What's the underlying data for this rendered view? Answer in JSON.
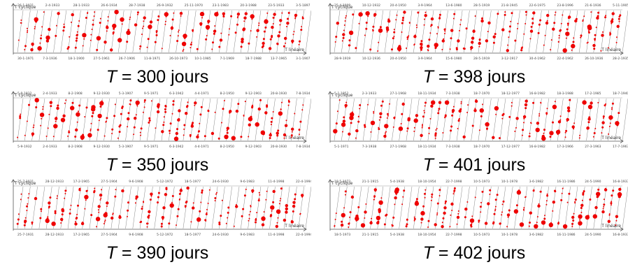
{
  "panels": [
    {
      "period_caption_prefix": "T",
      "period_caption_rest": " = 300 jours",
      "y_axis_label": "T cyclique",
      "x_axis_label": "T linéaire",
      "top_dates": [
        "26-1-1931",
        "2-4-1933",
        "28-1-1933",
        "26-6-1934",
        "28-7-1938",
        "26-9-1932",
        "25-11-1970",
        "23-1-1983",
        "20-3-1988",
        "23-5-1933",
        "3-5-1897"
      ],
      "bottom_dates": [
        "30-1-1971",
        "7-3-1936",
        "18-1-1900",
        "27-5-1961",
        "26-7-1906",
        "11-8-1971",
        "26-10-1973",
        "10-1-1985",
        "7-1-1969",
        "18-7-1988",
        "13-7-1965",
        "3-1-1907"
      ],
      "series_color": "#ee0000",
      "seed": 11,
      "columns": 40,
      "density": 0.55
    },
    {
      "period_caption_prefix": "T",
      "period_caption_rest": " = 398 jours",
      "y_axis_label": "T cyclique",
      "x_axis_label": "T linéaire",
      "top_dates": [
        "25-4-1909",
        "10-12-1932",
        "20-4-1950",
        "3-9-1964",
        "13-6-1980",
        "28-5-1919",
        "21-8-1945",
        "22-6-1975",
        "23-8-1996",
        "21-6-1936",
        "5-11-1905"
      ],
      "bottom_dates": [
        "28-9-1919",
        "10-12-1936",
        "20-4-1950",
        "3-9-1964",
        "15-6-1980",
        "28-5-1919",
        "3-12-1917",
        "30-4-1962",
        "22-4-1962",
        "26-10-1936",
        "28-2-1935"
      ],
      "series_color": "#ee0000",
      "seed": 23,
      "columns": 40,
      "density": 0.6
    },
    {
      "period_caption_prefix": "T",
      "period_caption_rest": " = 350 jours",
      "y_axis_label": "T cyclique",
      "x_axis_label": "T linéaire",
      "top_dates": [
        "5-9-1932",
        "2-4-1933",
        "8-2-1908",
        "9-12-1930",
        "5-3-1907",
        "9-5-1971",
        "6-3-1942",
        "4-4-1971",
        "8-2-1950",
        "9-12-1903",
        "20-8-1930",
        "7-8-1934"
      ],
      "bottom_dates": [
        "5-9-1932",
        "2-4-1933",
        "8-2-1908",
        "9-12-1930",
        "5-3-1907",
        "9-5-1971",
        "6-3-1942",
        "4-4-1971",
        "8-2-1950",
        "9-12-1903",
        "20-8-1930",
        "7-8-1934"
      ],
      "series_color": "#ee0000",
      "seed": 37,
      "columns": 40,
      "density": 0.55
    },
    {
      "period_caption_prefix": "T",
      "period_caption_rest": " = 401 jours",
      "y_axis_label": "T cyclique",
      "x_axis_label": "T linéaire",
      "top_dates": [
        "5-1-1952",
        "2-3-1933",
        "27-1-1968",
        "18-11-1934",
        "7-3-1938",
        "18-7-1970",
        "18-12-1977",
        "16-8-1982",
        "18-3-1988",
        "17-2-1985",
        "18-7-1940"
      ],
      "bottom_dates": [
        "5-1-1971",
        "7-3-1938",
        "27-1-1968",
        "18-11-1934",
        "7-3-1938",
        "18-7-1970",
        "17-12-1977",
        "16-8-1982",
        "17-3-1966",
        "27-3-1963",
        "17-7-1967"
      ],
      "series_color": "#ee0000",
      "seed": 41,
      "columns": 40,
      "density": 0.6
    },
    {
      "period_caption_prefix": "T",
      "period_caption_rest": " = 390 jours",
      "y_axis_label": "T cyclique",
      "x_axis_label": "T linéaire",
      "top_dates": [
        "25-7-1931",
        "28-12-1933",
        "17-2-1965",
        "27-5-1904",
        "9-6-1908",
        "5-12-1972",
        "18-5-1977",
        "24-6-1930",
        "9-6-1983",
        "11-4-1998",
        "22-4-1994"
      ],
      "bottom_dates": [
        "25-7-1931",
        "28-12-1933",
        "17-2-1965",
        "27-5-1904",
        "9-6-1908",
        "5-12-1972",
        "18-5-1977",
        "24-6-1930",
        "9-6-1983",
        "11-4-1998",
        "22-4-1994"
      ],
      "series_color": "#ee0000",
      "seed": 53,
      "columns": 40,
      "density": 0.65
    },
    {
      "period_caption_prefix": "T",
      "period_caption_rest": " = 402 jours",
      "y_axis_label": "T cyclique",
      "x_axis_label": "T linéaire",
      "top_dates": [
        "18-5-1973",
        "21-1-1915",
        "5-4-1938",
        "18-10-1954",
        "22-7-1998",
        "10-5-1973",
        "10-1-1978",
        "3-6-1982",
        "16-11-1986",
        "24-5-1990",
        "16-8-1937"
      ],
      "bottom_dates": [
        "18-5-1973",
        "21-1-1915",
        "5-4-1938",
        "18-10-1954",
        "22-7-1998",
        "10-5-1973",
        "10-1-1978",
        "3-6-1982",
        "16-11-1986",
        "24-5-1990",
        "16-8-1937"
      ],
      "series_color": "#ee0000",
      "seed": 67,
      "columns": 40,
      "density": 0.62
    }
  ]
}
